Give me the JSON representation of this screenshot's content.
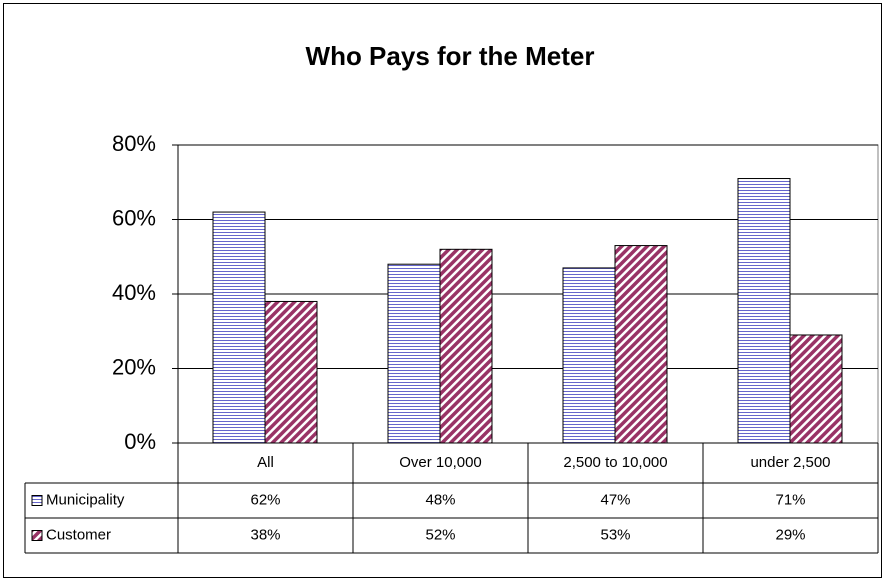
{
  "chart_data": {
    "type": "bar",
    "title": "Who Pays for the Meter",
    "categories": [
      "All",
      "Over 10,000",
      "2,500 to 10,000",
      "under 2,500"
    ],
    "series": [
      {
        "name": "Municipality",
        "color": "#6666cc",
        "values": [
          62,
          48,
          47,
          71
        ],
        "value_labels": [
          "62%",
          "48%",
          "47%",
          "71%"
        ]
      },
      {
        "name": "Customer",
        "color": "#993366",
        "values": [
          38,
          52,
          53,
          29
        ],
        "value_labels": [
          "38%",
          "52%",
          "53%",
          "29%"
        ]
      }
    ],
    "ylim": [
      0,
      80
    ],
    "yticks": [
      {
        "value": 0,
        "label": "0%"
      },
      {
        "value": 20,
        "label": "20%"
      },
      {
        "value": 40,
        "label": "40%"
      },
      {
        "value": 60,
        "label": "60%"
      },
      {
        "value": 80,
        "label": "80%"
      }
    ],
    "grid": true
  }
}
